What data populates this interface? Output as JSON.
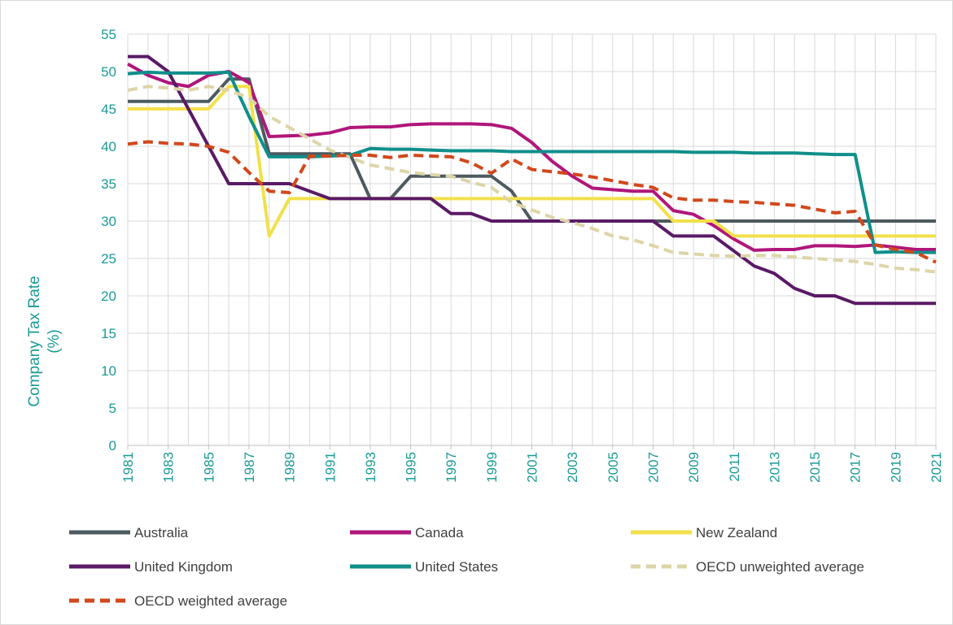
{
  "chart_data": {
    "type": "line",
    "ylabel": [
      "Company Tax Rate",
      "(%)"
    ],
    "x": [
      1981,
      1982,
      1983,
      1984,
      1985,
      1986,
      1987,
      1988,
      1989,
      1990,
      1991,
      1992,
      1993,
      1994,
      1995,
      1996,
      1997,
      1998,
      1999,
      2000,
      2001,
      2002,
      2003,
      2004,
      2005,
      2006,
      2007,
      2008,
      2009,
      2010,
      2011,
      2012,
      2013,
      2014,
      2015,
      2016,
      2017,
      2018,
      2019,
      2020,
      2021
    ],
    "xlim": [
      1981,
      2021
    ],
    "xticks": [
      1981,
      1983,
      1985,
      1987,
      1989,
      1991,
      1993,
      1995,
      1997,
      1999,
      2001,
      2003,
      2005,
      2007,
      2009,
      2011,
      2013,
      2015,
      2017,
      2019,
      2021
    ],
    "ylim": [
      0,
      55
    ],
    "yticks": [
      0,
      5,
      10,
      15,
      20,
      25,
      30,
      35,
      40,
      45,
      50,
      55
    ],
    "grid": true,
    "legend": "bottom",
    "series": [
      {
        "name": "Australia",
        "color": "#4d5a60",
        "dash": false,
        "values": [
          46,
          46,
          46,
          46,
          46,
          49,
          49,
          39,
          39,
          39,
          39,
          39,
          33,
          33,
          36,
          36,
          36,
          36,
          36,
          34,
          30,
          30,
          30,
          30,
          30,
          30,
          30,
          30,
          30,
          30,
          30,
          30,
          30,
          30,
          30,
          30,
          30,
          30,
          30,
          30,
          30
        ]
      },
      {
        "name": "Canada",
        "color": "#b0167a",
        "dash": false,
        "values": [
          51,
          49.5,
          48.5,
          48,
          49.5,
          50,
          48.5,
          41.3,
          41.4,
          41.5,
          41.8,
          42.5,
          42.6,
          42.6,
          42.9,
          43,
          43,
          43,
          42.9,
          42.4,
          40.5,
          38,
          36,
          34.4,
          34.2,
          34,
          34,
          31.4,
          30.9,
          29.4,
          27.6,
          26.1,
          26.2,
          26.2,
          26.7,
          26.7,
          26.6,
          26.8,
          26.5,
          26.2,
          26.2
        ]
      },
      {
        "name": "New Zealand",
        "color": "#f2e04a",
        "dash": false,
        "values": [
          45,
          45,
          45,
          45,
          45,
          48,
          48,
          28,
          33,
          33,
          33,
          33,
          33,
          33,
          33,
          33,
          33,
          33,
          33,
          33,
          33,
          33,
          33,
          33,
          33,
          33,
          33,
          30,
          30,
          30,
          28,
          28,
          28,
          28,
          28,
          28,
          28,
          28,
          28,
          28,
          28
        ]
      },
      {
        "name": "United Kingdom",
        "color": "#5a1a66",
        "dash": false,
        "values": [
          52,
          52,
          50,
          45,
          40,
          35,
          35,
          35,
          35,
          34,
          33,
          33,
          33,
          33,
          33,
          33,
          31,
          31,
          30,
          30,
          30,
          30,
          30,
          30,
          30,
          30,
          30,
          28,
          28,
          28,
          26,
          24,
          23,
          21,
          20,
          20,
          19,
          19,
          19,
          19,
          19
        ]
      },
      {
        "name": "United States",
        "color": "#108f8a",
        "dash": false,
        "values": [
          49.7,
          49.9,
          49.8,
          49.8,
          49.8,
          49.9,
          44,
          38.6,
          38.6,
          38.6,
          38.7,
          38.8,
          39.7,
          39.6,
          39.6,
          39.5,
          39.4,
          39.4,
          39.4,
          39.3,
          39.3,
          39.3,
          39.3,
          39.3,
          39.3,
          39.3,
          39.3,
          39.3,
          39.2,
          39.2,
          39.2,
          39.1,
          39.1,
          39.1,
          39,
          38.9,
          38.9,
          25.8,
          25.9,
          25.8,
          25.8
        ]
      },
      {
        "name": "OECD unweighted average",
        "color": "#ddd5a8",
        "dash": true,
        "values": [
          47.5,
          48,
          47.8,
          47.5,
          48,
          47.5,
          46.5,
          44,
          42.5,
          41,
          39.5,
          38.5,
          37.5,
          37,
          36.5,
          36.2,
          36,
          35.2,
          34.5,
          32.5,
          31.5,
          30.5,
          29.8,
          29,
          28,
          27.5,
          26.7,
          25.8,
          25.6,
          25.4,
          25.3,
          25.4,
          25.4,
          25.2,
          25,
          24.8,
          24.6,
          24.2,
          23.7,
          23.5,
          23.2
        ]
      },
      {
        "name": "OECD weighted average",
        "color": "#d0481c",
        "dash": true,
        "values": [
          40.3,
          40.6,
          40.4,
          40.3,
          40,
          39.2,
          36.5,
          34,
          33.8,
          38.7,
          38.7,
          38.8,
          38.8,
          38.5,
          38.8,
          38.7,
          38.6,
          37.8,
          36.4,
          38.3,
          36.9,
          36.6,
          36.3,
          35.9,
          35.4,
          34.9,
          34.5,
          33.1,
          32.8,
          32.8,
          32.6,
          32.5,
          32.3,
          32.1,
          31.6,
          31.1,
          31.3,
          26.8,
          26.2,
          25.8,
          24.5
        ]
      }
    ]
  }
}
